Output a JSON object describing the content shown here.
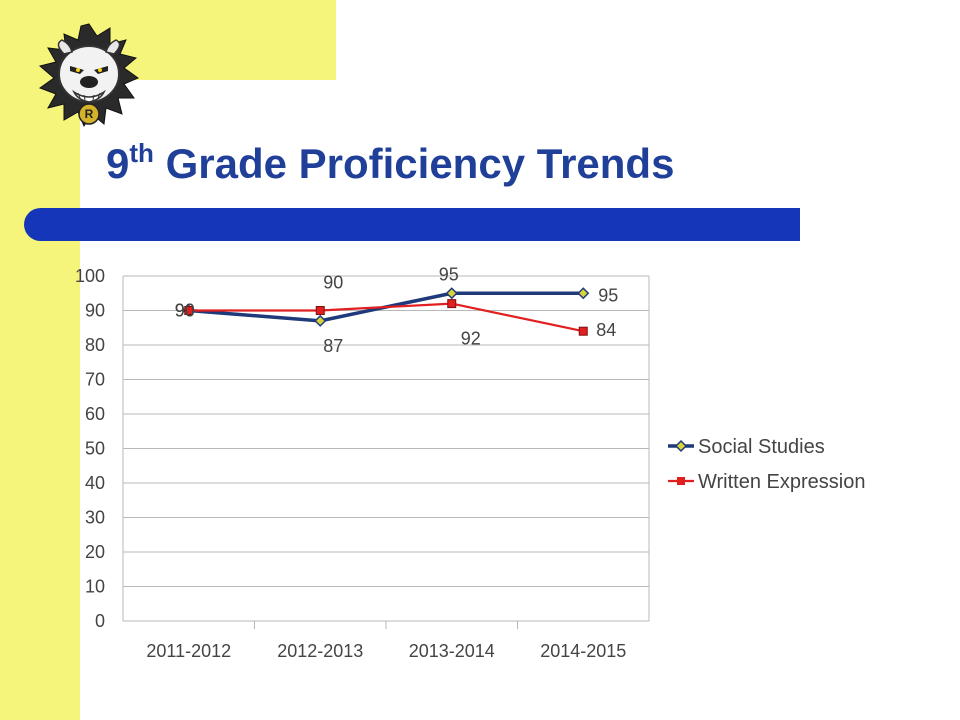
{
  "slide": {
    "title_main": "9",
    "title_sup": "th",
    "title_rest": " Grade Proficiency Trends"
  },
  "colors": {
    "accent": "#f4f57a",
    "title": "#1f3f99",
    "title_bar": "#1536b8"
  },
  "logo": {
    "icon": "bulldog-mascot-icon",
    "emblem_letter": "R"
  },
  "chart_data": {
    "type": "line",
    "categories": [
      "2011-2012",
      "2012-2013",
      "2013-2014",
      "2014-2015"
    ],
    "ylim": [
      0,
      100
    ],
    "yticks": [
      0,
      10,
      20,
      30,
      40,
      50,
      60,
      70,
      80,
      90,
      100
    ],
    "grid": true,
    "legend_position": "right",
    "series": [
      {
        "name": "Social Studies",
        "values": [
          90,
          87,
          95,
          95
        ],
        "color": "#1f3a7a",
        "marker": "diamond"
      },
      {
        "name": "Written Expression",
        "values": [
          90,
          90,
          92,
          84
        ],
        "color": "#e21f1f",
        "marker": "square"
      }
    ]
  }
}
